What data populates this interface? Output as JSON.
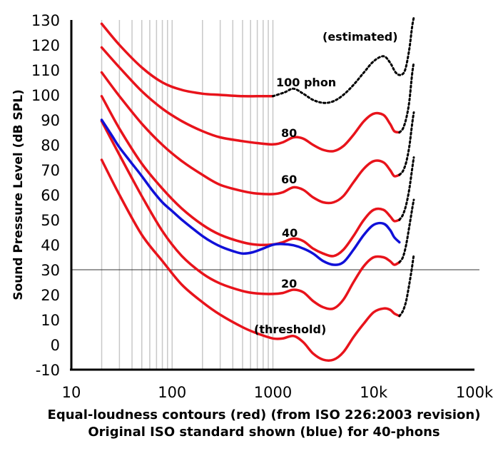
{
  "chart_data": {
    "type": "line",
    "title": "",
    "caption_line1": "Equal-loudness contours (red) (from ISO 226:2003 revision)",
    "caption_line2": "Original ISO standard shown (blue) for 40-phons",
    "ylabel": "Sound Pressure Level (dB SPL)",
    "xscale": "log",
    "xlim": [
      10,
      100000
    ],
    "ylim": [
      -10,
      130
    ],
    "x_tick_labels": [
      "10",
      "100",
      "1000",
      "10k",
      "100k"
    ],
    "y_tick_labels": [
      "130",
      "120",
      "110",
      "100",
      "90",
      "80",
      "70",
      "60",
      "50",
      "40",
      "30",
      "20",
      "10",
      "0",
      "-10"
    ],
    "reference_line_y": 30,
    "colors": {
      "iso2003": "#e8131b",
      "original": "#1010d8",
      "estimated": "#000000",
      "grid": "#c8c8c8"
    },
    "annotations": {
      "estimated": "(estimated)",
      "phon100": "100 phon",
      "phon80": "80",
      "phon60": "60",
      "phon40": "40",
      "phon20": "20",
      "threshold": "(threshold)"
    },
    "series": [
      {
        "name": "100 phon",
        "style": "red",
        "x": [
          20,
          30,
          50,
          80,
          125,
          200,
          300,
          500,
          700,
          1000
        ],
        "y": [
          128.5,
          120,
          111,
          105,
          102,
          100.5,
          100,
          99.5,
          99.5,
          99.5
        ]
      },
      {
        "name": "100 phon estimated",
        "style": "dotted",
        "x": [
          1000,
          1300,
          1600,
          2000,
          2500,
          3200,
          4000,
          5000,
          6300,
          8000,
          10000,
          12500,
          14500,
          16500,
          18500,
          20500,
          22500,
          24000,
          25000
        ],
        "y": [
          99.5,
          101,
          102.5,
          100.5,
          98,
          96.8,
          97.5,
          100,
          104,
          109,
          113.5,
          115.5,
          113,
          109,
          108,
          110,
          118,
          127,
          131
        ]
      },
      {
        "name": "80 phon",
        "style": "red",
        "x": [
          20,
          30,
          50,
          80,
          125,
          200,
          300,
          500,
          700,
          1000,
          1250,
          1600,
          2000,
          2500,
          3150,
          4000,
          5000,
          6300,
          8000,
          10000,
          12500,
          14500,
          16000,
          18000
        ],
        "y": [
          119,
          111,
          101.5,
          94.5,
          89.5,
          85.5,
          83,
          81.5,
          80.7,
          80.2,
          81,
          83,
          82.5,
          80,
          78,
          77.5,
          79.5,
          84,
          89.5,
          92.5,
          92,
          88.5,
          85.5,
          85
        ]
      },
      {
        "name": "80 phon estimated",
        "style": "dotted",
        "x": [
          18000,
          19500,
          21000,
          22500,
          24000,
          25000
        ],
        "y": [
          85,
          86.5,
          90.5,
          97,
          108,
          113
        ]
      },
      {
        "name": "60 phon",
        "style": "red",
        "x": [
          20,
          30,
          50,
          80,
          125,
          200,
          300,
          500,
          700,
          1000,
          1250,
          1600,
          2000,
          2500,
          3150,
          4000,
          5000,
          6300,
          8000,
          10000,
          12500,
          14500,
          16000,
          18000
        ],
        "y": [
          109,
          99.5,
          88.5,
          80,
          73.5,
          68,
          64,
          61.5,
          60.5,
          60.3,
          61,
          63,
          62,
          59,
          57,
          57,
          59.5,
          65,
          70.5,
          73.5,
          73,
          70,
          67.5,
          68
        ]
      },
      {
        "name": "60 phon estimated",
        "style": "dotted",
        "x": [
          18000,
          19500,
          21000,
          22500,
          24000,
          25000
        ],
        "y": [
          68,
          69.5,
          73,
          79,
          88,
          93
        ]
      },
      {
        "name": "40 phon",
        "style": "red",
        "x": [
          20,
          30,
          50,
          80,
          125,
          200,
          300,
          500,
          700,
          1000,
          1250,
          1600,
          2000,
          2500,
          3150,
          4000,
          5000,
          6300,
          8000,
          10000,
          12500,
          14500,
          16000,
          18000
        ],
        "y": [
          99.5,
          86.5,
          72.5,
          62.5,
          54.5,
          48,
          44,
          41,
          40,
          40.1,
          41,
          42.5,
          41.5,
          38.5,
          36.5,
          35.5,
          38,
          43.5,
          50,
          54,
          54,
          51.5,
          49.5,
          50
        ]
      },
      {
        "name": "40 phon estimated",
        "style": "dotted",
        "x": [
          18000,
          19500,
          21000,
          22500,
          24000,
          25000
        ],
        "y": [
          50,
          52,
          56,
          62,
          70,
          75
        ]
      },
      {
        "name": "20 phon",
        "style": "red",
        "x": [
          20,
          30,
          50,
          80,
          125,
          200,
          300,
          500,
          700,
          1000,
          1250,
          1600,
          2000,
          2500,
          3150,
          4000,
          5000,
          6300,
          8000,
          10000,
          12500,
          14500,
          16000,
          18000
        ],
        "y": [
          89.5,
          76,
          59.5,
          45.5,
          35.5,
          28.5,
          24.5,
          21.5,
          20.5,
          20.3,
          20.7,
          22,
          21,
          17.5,
          15,
          14.5,
          18,
          25,
          31.5,
          35,
          35,
          33.5,
          32,
          33
        ]
      },
      {
        "name": "20 phon estimated",
        "style": "dotted",
        "x": [
          18000,
          19500,
          21000,
          22500,
          24000,
          25000
        ],
        "y": [
          33,
          35,
          40,
          47,
          54,
          58
        ]
      },
      {
        "name": "threshold",
        "style": "red",
        "x": [
          20,
          30,
          50,
          80,
          125,
          200,
          300,
          500,
          700,
          1000,
          1250,
          1600,
          2000,
          2500,
          3150,
          4000,
          5000,
          6300,
          8000,
          10000,
          12500,
          14500,
          16000,
          18000
        ],
        "y": [
          74,
          60,
          44,
          33.5,
          24,
          17,
          12,
          7,
          4.5,
          2.5,
          2.5,
          3.5,
          1,
          -3.5,
          -6,
          -6,
          -3,
          3,
          8.5,
          13,
          14.5,
          14,
          12.5,
          11.5
        ]
      },
      {
        "name": "threshold estimated",
        "style": "dotted",
        "x": [
          18000,
          19500,
          21000,
          22500,
          24000,
          25000
        ],
        "y": [
          11.5,
          13.5,
          17.5,
          24,
          31,
          36
        ]
      },
      {
        "name": "original 40 phon",
        "style": "blue",
        "x": [
          20,
          25,
          30,
          40,
          50,
          63,
          80,
          100,
          125,
          160,
          200,
          250,
          315,
          400,
          500,
          630,
          800,
          1000,
          1250,
          1600,
          2000,
          2500,
          3150,
          4000,
          5000,
          6300,
          8000,
          10000,
          12500,
          14500,
          16000,
          18000
        ],
        "y": [
          90,
          84,
          79,
          72.5,
          67.5,
          62,
          57,
          53.5,
          50,
          46.5,
          43.5,
          41,
          39,
          37.5,
          36.5,
          37,
          38.5,
          40,
          40.3,
          39.8,
          38.5,
          36.5,
          33.5,
          32,
          33,
          38,
          44,
          48,
          48.5,
          46,
          43,
          41
        ]
      }
    ]
  }
}
